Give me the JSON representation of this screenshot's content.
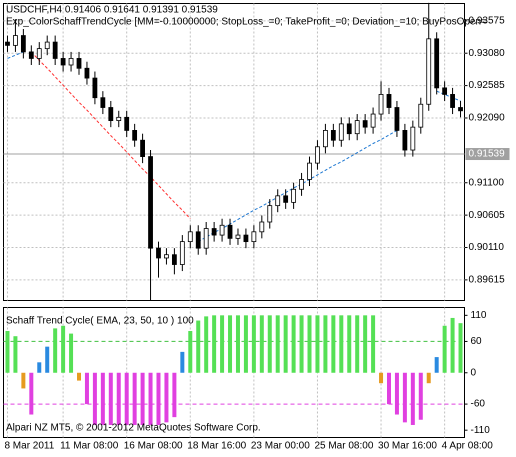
{
  "chart_data": [
    {
      "type": "candlestick",
      "title": "USDCHF,H4  0.91406 0.91641 0.91391 0.91539",
      "subtitle": "Exp_ColorSchaffTrendCycle [MM=-0.10000000; StopLoss_=0; TakeProfit_=0; Deviation_=10; BuyPosOpen=",
      "open": [
        0.9325,
        0.932,
        0.9335,
        0.931,
        0.93,
        0.9315,
        0.9325,
        0.93,
        0.929,
        0.93,
        0.9285,
        0.927,
        0.924,
        0.9225,
        0.9205,
        0.921,
        0.919,
        0.9175,
        0.915,
        0.901,
        0.8995,
        0.9,
        0.8985,
        0.902,
        0.9035,
        0.901,
        0.904,
        0.903,
        0.9045,
        0.9025,
        0.903,
        0.902,
        0.9035,
        0.905,
        0.9075,
        0.909,
        0.908,
        0.91,
        0.9115,
        0.914,
        0.9165,
        0.919,
        0.9175,
        0.92,
        0.9185,
        0.9205,
        0.9195,
        0.9215,
        0.9245,
        0.9225,
        0.919,
        0.916,
        0.9195,
        0.923,
        0.933,
        0.9255,
        0.9245,
        0.9225
      ],
      "high": [
        0.9335,
        0.936,
        0.9345,
        0.932,
        0.9325,
        0.9335,
        0.9335,
        0.931,
        0.931,
        0.931,
        0.9295,
        0.928,
        0.925,
        0.9235,
        0.922,
        0.922,
        0.92,
        0.9185,
        0.916,
        0.902,
        0.901,
        0.901,
        0.903,
        0.9045,
        0.9045,
        0.905,
        0.905,
        0.9055,
        0.9055,
        0.904,
        0.904,
        0.9045,
        0.906,
        0.9085,
        0.91,
        0.91,
        0.911,
        0.9125,
        0.915,
        0.9175,
        0.92,
        0.92,
        0.921,
        0.921,
        0.9215,
        0.9215,
        0.9225,
        0.9265,
        0.9255,
        0.9235,
        0.92,
        0.9205,
        0.924,
        0.9385,
        0.934,
        0.9265,
        0.9255,
        0.9235
      ],
      "low": [
        0.931,
        0.931,
        0.93,
        0.929,
        0.929,
        0.9305,
        0.929,
        0.928,
        0.928,
        0.9275,
        0.926,
        0.923,
        0.9215,
        0.9195,
        0.9195,
        0.918,
        0.9165,
        0.914,
        0.893,
        0.8965,
        0.8985,
        0.897,
        0.8975,
        0.901,
        0.9,
        0.9,
        0.902,
        0.902,
        0.9015,
        0.9015,
        0.901,
        0.901,
        0.9025,
        0.904,
        0.9065,
        0.907,
        0.907,
        0.909,
        0.9105,
        0.913,
        0.9155,
        0.9165,
        0.9165,
        0.9175,
        0.9175,
        0.9185,
        0.9185,
        0.9205,
        0.9215,
        0.918,
        0.915,
        0.915,
        0.9185,
        0.922,
        0.9245,
        0.9235,
        0.9215,
        0.921
      ],
      "close": [
        0.932,
        0.9335,
        0.931,
        0.93,
        0.9315,
        0.9325,
        0.93,
        0.929,
        0.93,
        0.9285,
        0.927,
        0.924,
        0.9225,
        0.9205,
        0.921,
        0.919,
        0.9175,
        0.915,
        0.901,
        0.8995,
        0.9,
        0.8985,
        0.902,
        0.9035,
        0.901,
        0.904,
        0.903,
        0.9045,
        0.9025,
        0.903,
        0.902,
        0.9035,
        0.905,
        0.9075,
        0.909,
        0.908,
        0.91,
        0.9115,
        0.914,
        0.9165,
        0.919,
        0.9175,
        0.92,
        0.9185,
        0.9205,
        0.9195,
        0.9215,
        0.9245,
        0.9225,
        0.919,
        0.916,
        0.9195,
        0.923,
        0.933,
        0.9255,
        0.9245,
        0.9225,
        0.922
      ],
      "series": [
        {
          "color": "#ff3030",
          "values": [
            null,
            null,
            null,
            0.931,
            0.9297,
            0.9285,
            0.9272,
            0.9259,
            0.9246,
            0.9233,
            0.9221,
            0.9208,
            0.9195,
            0.9182,
            0.917,
            0.9157,
            0.9144,
            0.9131,
            0.9119,
            0.9106,
            0.9093,
            0.908,
            0.9068,
            0.9055,
            null,
            null,
            null,
            null,
            null,
            null,
            null,
            null,
            null,
            null,
            null,
            null,
            null,
            null,
            null,
            null,
            null,
            null,
            null,
            null,
            null,
            null,
            null,
            null,
            null,
            null,
            null,
            null,
            null,
            null,
            null,
            null,
            null,
            null
          ]
        },
        {
          "color": "#1e78d2",
          "values": [
            0.93,
            0.9305,
            0.931,
            null,
            null,
            null,
            null,
            null,
            null,
            null,
            null,
            null,
            null,
            null,
            null,
            null,
            null,
            null,
            null,
            null,
            null,
            null,
            null,
            null,
            0.902,
            0.9027,
            0.9034,
            0.904,
            0.9047,
            0.9054,
            0.9061,
            0.9068,
            0.9074,
            0.9081,
            0.9088,
            0.9095,
            0.9102,
            0.9108,
            0.9115,
            0.9122,
            0.9129,
            0.9136,
            0.9142,
            0.9149,
            0.9156,
            0.9163,
            0.917,
            0.9176,
            0.9183,
            0.919,
            null,
            null,
            null,
            null,
            0.925,
            0.9245,
            0.924,
            0.9235
          ]
        }
      ],
      "current_price": 0.91539,
      "ylim": [
        0.893,
        0.9384
      ],
      "yticks": [
        0.93575,
        {
          "value": 0.9308,
          "label": "0.93080"
        },
        0.92585,
        {
          "value": 0.9209,
          "label": "0.92090"
        },
        {
          "value": 0.911,
          "label": "0.91100"
        },
        0.90605,
        {
          "value": 0.9011,
          "label": "0.90110"
        },
        0.89615
      ],
      "grid": true
    },
    {
      "type": "bar",
      "title": "Schaff Trend Cycle( EMA, 23, 50, 10 ) 100",
      "footer": "Alpari NZ MT5, © 2001-2012 MetaQuotes Software Corp.",
      "values": [
        80,
        70,
        -30,
        -80,
        20,
        50,
        85,
        90,
        75,
        -15,
        -60,
        -100,
        -100,
        -100,
        -100,
        -100,
        -100,
        -100,
        -100,
        -100,
        -95,
        -85,
        40,
        80,
        100,
        108,
        110,
        110,
        110,
        110,
        110,
        110,
        110,
        110,
        110,
        110,
        110,
        110,
        110,
        110,
        110,
        110,
        110,
        110,
        110,
        110,
        110,
        -20,
        -60,
        -80,
        -95,
        -100,
        -90,
        -20,
        30,
        90,
        105,
        95
      ],
      "bar_colors": [
        "#55e055",
        "#55e055",
        "#e69b20",
        "#e040e0",
        "#2a8ae0",
        "#2a8ae0",
        "#55e055",
        "#55e055",
        "#55e055",
        "#e69b20",
        "#e040e0",
        "#e040e0",
        "#e040e0",
        "#e040e0",
        "#e040e0",
        "#e040e0",
        "#e040e0",
        "#e040e0",
        "#e040e0",
        "#e040e0",
        "#e040e0",
        "#e040e0",
        "#2a8ae0",
        "#55e055",
        "#55e055",
        "#55e055",
        "#55e055",
        "#55e055",
        "#55e055",
        "#55e055",
        "#55e055",
        "#55e055",
        "#55e055",
        "#55e055",
        "#55e055",
        "#55e055",
        "#55e055",
        "#55e055",
        "#55e055",
        "#55e055",
        "#55e055",
        "#55e055",
        "#55e055",
        "#55e055",
        "#55e055",
        "#55e055",
        "#55e055",
        "#e69b20",
        "#e040e0",
        "#e040e0",
        "#e040e0",
        "#e040e0",
        "#e040e0",
        "#e69b20",
        "#2a8ae0",
        "#55e055",
        "#55e055",
        "#55e055"
      ],
      "levels": [
        {
          "value": 60,
          "color": "#40c040"
        },
        {
          "value": -60,
          "color": "#e040e0"
        }
      ],
      "ylim": [
        -124,
        125
      ],
      "yticks": [
        110,
        60,
        0,
        -60,
        -110
      ],
      "xticks": [
        {
          "value": 0,
          "label": "8 Mar 2011"
        },
        {
          "value": 7,
          "label": "11 Mar 08:00"
        },
        {
          "value": 15,
          "label": "16 Mar 08:00"
        },
        {
          "value": 23,
          "label": "18 Mar 16:00"
        },
        {
          "value": 31,
          "label": "23 Mar 00:00"
        },
        {
          "value": 39,
          "label": "25 Mar 08:00"
        },
        {
          "value": 47,
          "label": "30 Mar 16:00"
        },
        {
          "value": 55,
          "label": "4 Apr 08:00"
        }
      ],
      "grid": true
    }
  ]
}
